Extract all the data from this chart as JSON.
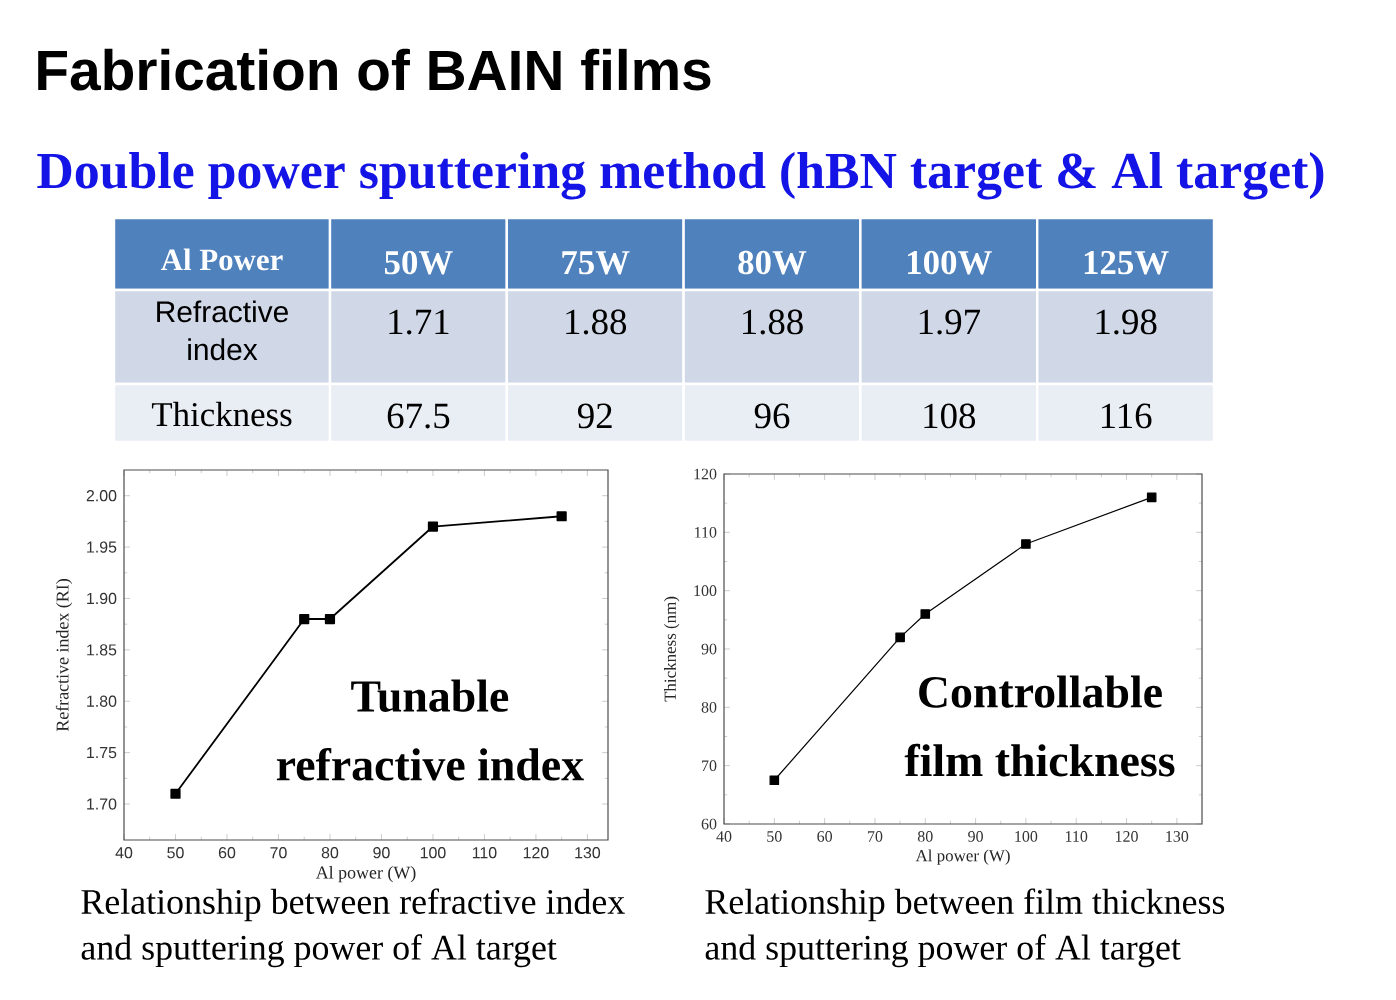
{
  "chart_data": [
    {
      "type": "other",
      "title": "Fabrication of BAIN films",
      "subtitle": "Double power sputtering method (hBN target & Al target)",
      "xlabel": "Al Power",
      "categories": [
        "50W",
        "75W",
        "80W",
        "100W",
        "125W"
      ],
      "series": [
        {
          "name": "Refractive index",
          "values": [
            1.71,
            1.88,
            1.88,
            1.97,
            1.98
          ]
        },
        {
          "name": "Thickness",
          "values": [
            67.5,
            92,
            96,
            108,
            116
          ]
        }
      ],
      "data_labels": true
    },
    {
      "type": "line",
      "x": [
        50,
        75,
        80,
        100,
        125
      ],
      "values": [
        1.71,
        1.88,
        1.88,
        1.97,
        1.98
      ],
      "color": "#000000",
      "marker": "square",
      "xlim": [
        40,
        134
      ],
      "ylim": [
        1.665,
        2.025
      ],
      "xticks": [
        40,
        50,
        60,
        70,
        80,
        90,
        100,
        110,
        120,
        130
      ],
      "yticks": [
        {
          "value": 1.7,
          "label": "1.70"
        },
        1.75,
        {
          "value": 1.8,
          "label": "1.80"
        },
        1.85,
        {
          "value": 1.9,
          "label": "1.90"
        },
        1.95,
        {
          "value": 2.0,
          "label": "2.00"
        }
      ],
      "xlabel": "Al power (W)",
      "ylabel": "Refractive index (RI)",
      "annotations": [
        "Tunable refractive index",
        "Relationship between refractive index and sputtering power of Al target"
      ]
    },
    {
      "type": "line",
      "x": [
        50,
        75,
        80,
        100,
        125
      ],
      "values": [
        67.5,
        92,
        96,
        108,
        116
      ],
      "color": "#000000",
      "marker": "square",
      "xlim": [
        40,
        135
      ],
      "ylim": [
        60,
        120
      ],
      "xticks": [
        40,
        50,
        60,
        70,
        80,
        90,
        100,
        110,
        120,
        130
      ],
      "yticks": [
        60,
        70,
        80,
        90,
        100,
        110,
        120
      ],
      "xlabel": "Al power (W)",
      "ylabel": "Thickness (nm)",
      "annotations": [
        "Controllable film thickness",
        "Relationship between film thickness and sputtering power of Al target"
      ]
    }
  ]
}
